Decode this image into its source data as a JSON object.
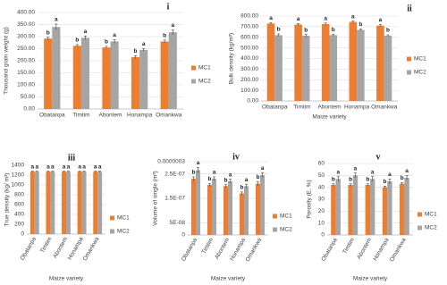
{
  "chart_data": [
    {
      "type": "bar",
      "title": "i",
      "y_label": "Thousand grain weight (g)",
      "categories": [
        "Obatanpa",
        "Timtim",
        "Abontem",
        "Honampa",
        "Omankwa"
      ],
      "series": [
        {
          "name": "MC1",
          "color": "#ed7d31",
          "values": [
            292,
            262,
            255,
            215,
            280
          ],
          "errors": [
            6,
            5,
            5,
            6,
            6
          ],
          "letters": [
            "b",
            "b",
            "b",
            "b",
            "b"
          ]
        },
        {
          "name": "MC2",
          "color": "#a5a5a5",
          "values": [
            340,
            295,
            280,
            245,
            318
          ],
          "errors": [
            12,
            8,
            8,
            6,
            10
          ],
          "letters": [
            "a",
            "a",
            "a",
            "a",
            "a"
          ]
        }
      ],
      "ylim": [
        0,
        400
      ],
      "yticks": [
        {
          "value": 0,
          "label": "0.00"
        },
        {
          "value": 50,
          "label": "50.00"
        },
        {
          "value": 100,
          "label": "100.00"
        },
        {
          "value": 150,
          "label": "150.00"
        },
        {
          "value": 200,
          "label": "200.00"
        },
        {
          "value": 250,
          "label": "250.00"
        },
        {
          "value": 300,
          "label": "300.00"
        },
        {
          "value": 350,
          "label": "350.00"
        },
        {
          "value": 400,
          "label": "400.00"
        }
      ],
      "grid": true,
      "legend": "right"
    },
    {
      "type": "bar",
      "title": "ii",
      "y_label": "Bulk density (kg/m³)",
      "x_label": "Maize variety",
      "categories": [
        "Obatanpa",
        "Timtim",
        "Abontem",
        "Honampa",
        "Omankwa"
      ],
      "series": [
        {
          "name": "MC1",
          "color": "#ed7d31",
          "values": [
            730,
            720,
            725,
            745,
            710
          ],
          "errors": [
            8,
            10,
            10,
            8,
            10
          ],
          "letters": [
            "a",
            "a",
            "a",
            "a",
            "a"
          ]
        },
        {
          "name": "MC2",
          "color": "#a5a5a5",
          "values": [
            620,
            615,
            620,
            670,
            615
          ],
          "errors": [
            12,
            12,
            10,
            10,
            8
          ],
          "letters": [
            "b",
            "b",
            "b",
            "b",
            "b"
          ]
        }
      ],
      "ylim": [
        0,
        800
      ],
      "yticks": [
        {
          "value": 0,
          "label": "0.00"
        },
        {
          "value": 100,
          "label": "100.00"
        },
        {
          "value": 200,
          "label": "200.00"
        },
        {
          "value": 300,
          "label": "300.00"
        },
        {
          "value": 400,
          "label": "400.00"
        },
        {
          "value": 500,
          "label": "500.00"
        },
        {
          "value": 600,
          "label": "600.00"
        },
        {
          "value": 700,
          "label": "700.00"
        },
        {
          "value": 800,
          "label": "800.00"
        }
      ],
      "grid": true,
      "legend": "right"
    },
    {
      "type": "bar",
      "title": "iii",
      "y_label": "True density (kg/ m³)",
      "x_label": "Maize variety",
      "categories": [
        "Obatanpa",
        "Timtim",
        "Abontem",
        "Honampa",
        "Omankwa"
      ],
      "series": [
        {
          "name": "MC1",
          "color": "#ed7d31",
          "values": [
            1270,
            1270,
            1270,
            1270,
            1270
          ],
          "errors": [
            10,
            10,
            10,
            10,
            10
          ],
          "letters": [
            "a",
            "a",
            "a",
            "a",
            "a"
          ]
        },
        {
          "name": "MC2",
          "color": "#a5a5a5",
          "values": [
            1270,
            1270,
            1270,
            1270,
            1270
          ],
          "errors": [
            10,
            10,
            10,
            10,
            10
          ],
          "letters": [
            "a",
            "a",
            "a",
            "a",
            "a"
          ]
        }
      ],
      "ylim": [
        0,
        1400
      ],
      "yticks": [
        0,
        200,
        400,
        600,
        800,
        1000,
        1200,
        1400
      ],
      "grid": true,
      "legend": "right"
    },
    {
      "type": "bar",
      "title": "iv",
      "y_label": "Volume of single (m³)",
      "x_label": "Maize variety",
      "categories": [
        "Obatanpa",
        "Timtim",
        "Abontem",
        "Honampa",
        "Omankwa"
      ],
      "series": [
        {
          "name": "MC1",
          "color": "#ed7d31",
          "values": [
            2.3e-07,
            2.05e-07,
            2e-07,
            1.7e-07,
            2.1e-07
          ],
          "errors": [
            8e-09,
            6e-09,
            6e-09,
            6e-09,
            8e-09
          ],
          "letters": [
            "b",
            "b",
            "b",
            "b",
            "b"
          ]
        },
        {
          "name": "MC2",
          "color": "#a5a5a5",
          "values": [
            2.65e-07,
            2.3e-07,
            2.2e-07,
            2e-07,
            2.45e-07
          ],
          "errors": [
            1.2e-08,
            8e-09,
            8e-09,
            8e-09,
            1e-08
          ],
          "letters": [
            "a",
            "a",
            "a",
            "a",
            "a"
          ]
        }
      ],
      "ylim": [
        0,
        3e-07
      ],
      "yticks": [
        0,
        {
          "value": 5e-08,
          "label": "5E-08"
        },
        {
          "value": 1.5e-07,
          "label": "1.5E-07"
        },
        {
          "value": 2.5e-07,
          "label": "2.5E-07"
        },
        {
          "value": 3e-07,
          "label": "0.0000003"
        }
      ],
      "grid": true,
      "legend": "right"
    },
    {
      "type": "bar",
      "title": "v",
      "y_label": "Porosity (E, %)",
      "x_label": "Maize variety",
      "categories": [
        "Obatanpa",
        "Timtim",
        "Abontem",
        "Honampa",
        "Omankwa"
      ],
      "series": [
        {
          "name": "MC1",
          "color": "#ed7d31",
          "values": [
            42,
            42,
            42,
            40,
            43
          ],
          "errors": [
            1,
            1,
            1,
            1,
            1
          ],
          "letters": [
            "b",
            "b",
            "b",
            "b",
            "b"
          ]
        },
        {
          "name": "MC2",
          "color": "#a5a5a5",
          "values": [
            47,
            50,
            47,
            45,
            48
          ],
          "errors": [
            2,
            2,
            2,
            2,
            2
          ],
          "letters": [
            "a",
            "a",
            "a",
            "a",
            "a"
          ]
        }
      ],
      "ylim": [
        0,
        60
      ],
      "yticks": [
        0,
        10,
        20,
        30,
        40,
        50,
        60
      ],
      "grid": true,
      "legend": "right"
    }
  ]
}
